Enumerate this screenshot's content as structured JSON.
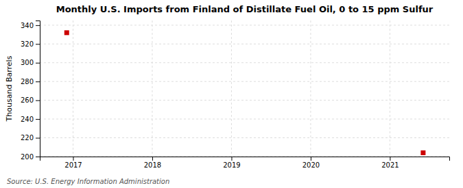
{
  "chart_data": {
    "type": "scatter",
    "title": "Monthly U.S. Imports from Finland of Distillate Fuel Oil, 0 to 15 ppm Sulfur",
    "ylabel": "Thousand Barrels",
    "source": "Source: U.S. Energy Information Administration",
    "x": [
      2016.92,
      2021.42
    ],
    "values": [
      332,
      204
    ],
    "color": "#cc0000",
    "marker": "square",
    "xlim": [
      2016.58,
      2021.75
    ],
    "xticks": [
      2017,
      2018,
      2019,
      2020,
      2021
    ],
    "ylim": [
      200,
      345
    ],
    "yticks": [
      200,
      220,
      240,
      260,
      280,
      300,
      320,
      340
    ],
    "grid": true
  }
}
